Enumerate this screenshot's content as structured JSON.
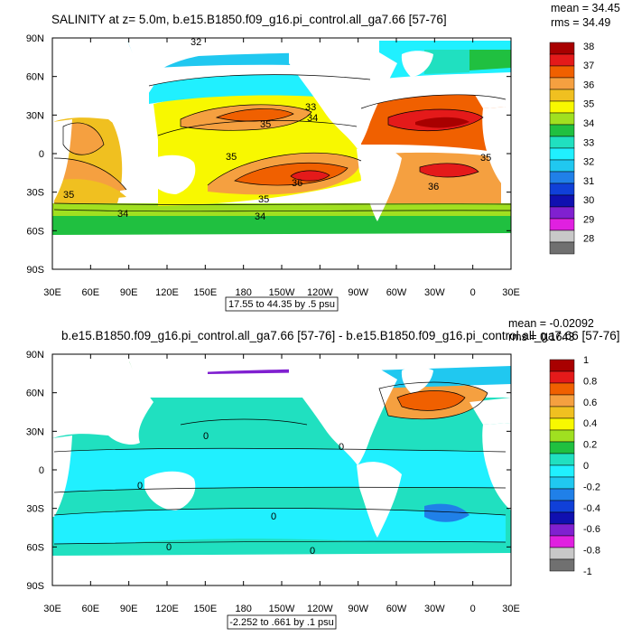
{
  "chart_data": [
    {
      "type": "heatmap",
      "title": "SALINITY at z=   5.0m, b.e15.B1850.f09_g16.pi_control.all_ga7.66 [57-76]",
      "stats": {
        "mean": "mean = 34.45",
        "rms": "rms = 34.49"
      },
      "x_ticks": [
        "30E",
        "60E",
        "90E",
        "120E",
        "150E",
        "180",
        "150W",
        "120W",
        "90W",
        "60W",
        "30W",
        "0",
        "30E"
      ],
      "y_ticks": [
        "90N",
        "60N",
        "30N",
        "0",
        "30S",
        "60S",
        "90S"
      ],
      "xlim": [
        30,
        390
      ],
      "ylim": [
        -90,
        90
      ],
      "contour_info": "17.55 to 44.35 by .5 psu",
      "contour_labels": [
        "32",
        "33",
        "34",
        "35",
        "35",
        "35",
        "35",
        "34",
        "34",
        "36",
        "36",
        "35"
      ],
      "colorbar": {
        "labels": [
          "38",
          "37",
          "36",
          "35",
          "34",
          "33",
          "32",
          "31",
          "30",
          "29",
          "28"
        ],
        "colors": [
          "#a80000",
          "#e41a1a",
          "#f06000",
          "#f5a040",
          "#f0c020",
          "#f8f800",
          "#a0e020",
          "#20c040",
          "#20e0c0",
          "#20f0ff",
          "#20c8f0",
          "#2080e8",
          "#1040d8",
          "#1010b0",
          "#8020d0",
          "#e020e0",
          "#c8c8c8",
          "#707070"
        ]
      }
    },
    {
      "type": "heatmap",
      "title": "b.e15.B1850.f09_g16.pi_control.all_ga7.66 [57-76] - b.e15.B1850.f09_g16.pi_control.all_ga7.66 [57-76]",
      "stats": {
        "mean": "mean = -0.02092",
        "rms": "rms = 0.1643"
      },
      "x_ticks": [
        "30E",
        "60E",
        "90E",
        "120E",
        "150E",
        "180",
        "150W",
        "120W",
        "90W",
        "60W",
        "30W",
        "0",
        "30E"
      ],
      "y_ticks": [
        "90N",
        "60N",
        "30N",
        "0",
        "30S",
        "60S",
        "90S"
      ],
      "xlim": [
        30,
        390
      ],
      "ylim": [
        -90,
        90
      ],
      "contour_info": "-2.252 to .661 by .1 psu",
      "contour_labels": [
        "0",
        "0",
        "0",
        "0",
        "0",
        "0"
      ],
      "colorbar": {
        "labels": [
          "1",
          "0.8",
          "0.6",
          "0.4",
          "0.2",
          "0",
          "-0.2",
          "-0.4",
          "-0.6",
          "-0.8",
          "-1"
        ],
        "colors": [
          "#a80000",
          "#e41a1a",
          "#f06000",
          "#f5a040",
          "#f0c020",
          "#f8f800",
          "#a0e020",
          "#20c040",
          "#20e0c0",
          "#20f0ff",
          "#20c8f0",
          "#2080e8",
          "#1040d8",
          "#1010b0",
          "#8020d0",
          "#e020e0",
          "#c8c8c8",
          "#707070"
        ]
      }
    }
  ]
}
